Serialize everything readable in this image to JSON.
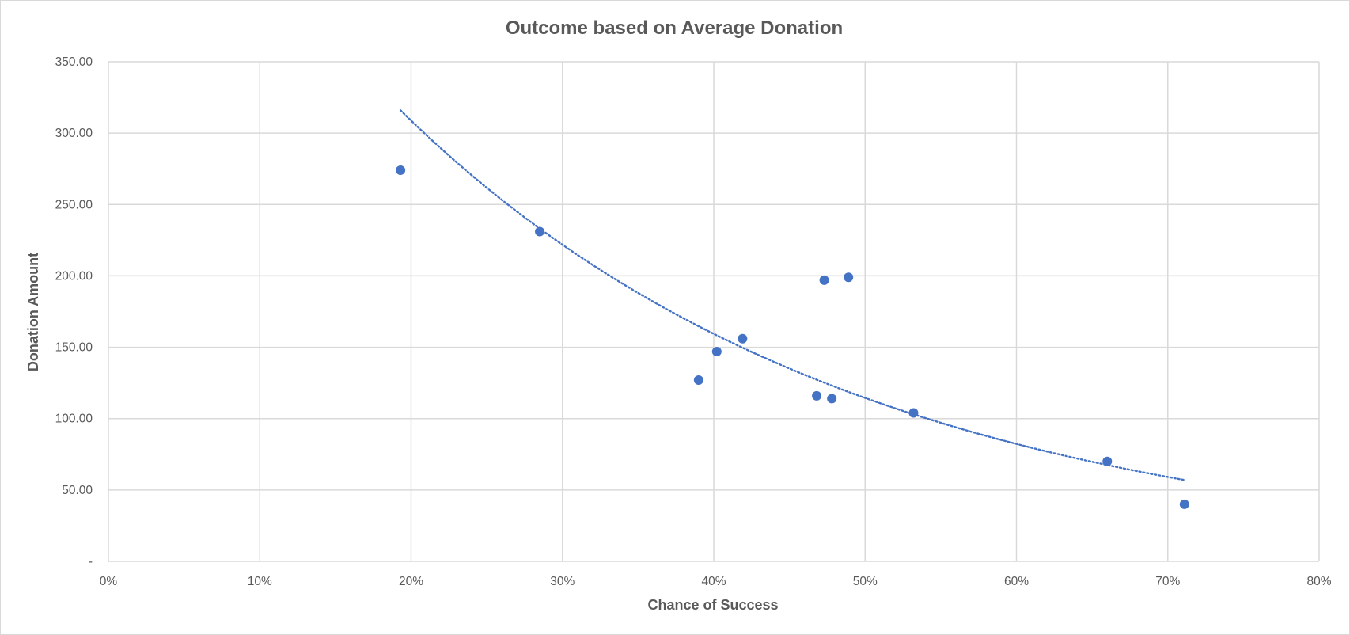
{
  "chart_data": {
    "type": "scatter",
    "title": "Outcome based on Average Donation",
    "xlabel": "Chance of Success",
    "ylabel": "Donation Amount",
    "xlim": [
      0,
      0.8
    ],
    "ylim": [
      0,
      350
    ],
    "x_ticks": [
      {
        "value": 0,
        "label": "0%"
      },
      {
        "value": 0.1,
        "label": "10%"
      },
      {
        "value": 0.2,
        "label": "20%"
      },
      {
        "value": 0.3,
        "label": "30%"
      },
      {
        "value": 0.4,
        "label": "40%"
      },
      {
        "value": 0.5,
        "label": "50%"
      },
      {
        "value": 0.6,
        "label": "60%"
      },
      {
        "value": 0.7,
        "label": "70%"
      },
      {
        "value": 0.8,
        "label": "80%"
      }
    ],
    "y_ticks": [
      {
        "value": 0,
        "label": "-"
      },
      {
        "value": 50,
        "label": "50.00"
      },
      {
        "value": 100,
        "label": "100.00"
      },
      {
        "value": 150,
        "label": "150.00"
      },
      {
        "value": 200,
        "label": "200.00"
      },
      {
        "value": 250,
        "label": "250.00"
      },
      {
        "value": 300,
        "label": "300.00"
      },
      {
        "value": 350,
        "label": "350.00"
      }
    ],
    "grid": true,
    "legend": "none",
    "points": [
      {
        "x": 0.193,
        "y": 274
      },
      {
        "x": 0.285,
        "y": 231
      },
      {
        "x": 0.39,
        "y": 127
      },
      {
        "x": 0.402,
        "y": 147
      },
      {
        "x": 0.419,
        "y": 156
      },
      {
        "x": 0.468,
        "y": 116
      },
      {
        "x": 0.473,
        "y": 197
      },
      {
        "x": 0.478,
        "y": 114
      },
      {
        "x": 0.489,
        "y": 199
      },
      {
        "x": 0.532,
        "y": 104
      },
      {
        "x": 0.66,
        "y": 70
      },
      {
        "x": 0.711,
        "y": 40
      }
    ],
    "trendline": {
      "type": "exponential",
      "style": "dotted",
      "x_start": 0.193,
      "x_end": 0.711,
      "y_start": 316,
      "y_end": 57
    },
    "colors": {
      "point": "#4472c4",
      "trendline": "#4472c4",
      "grid": "#d9d9d9",
      "text": "#595959"
    }
  }
}
